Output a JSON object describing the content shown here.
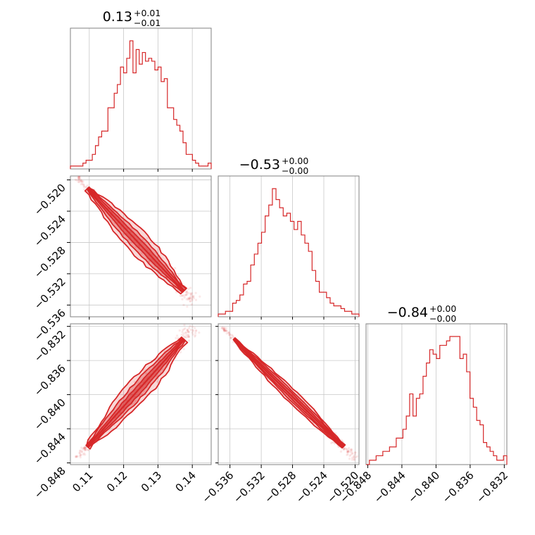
{
  "chart_data": {
    "type": "corner",
    "color": "#d62728",
    "grid": true,
    "parameters": [
      {
        "median": "0.13",
        "upper": "+0.01",
        "lower": "−0.01",
        "range": [
          0.1045,
          0.1455
        ],
        "ticks": [
          0.11,
          0.12,
          0.13,
          0.14
        ],
        "tick_labels": [
          "0.11",
          "0.12",
          "0.13",
          "0.14"
        ]
      },
      {
        "median": "−0.53",
        "upper": "+0.00",
        "lower": "−0.00",
        "range": [
          -0.5375,
          -0.5195
        ],
        "ticks": [
          -0.536,
          -0.532,
          -0.528,
          -0.524,
          -0.52
        ],
        "tick_labels": [
          "−0.536",
          "−0.532",
          "−0.528",
          "−0.524",
          "−0.520"
        ]
      },
      {
        "median": "−0.84",
        "upper": "+0.00",
        "lower": "−0.00",
        "range": [
          -0.8482,
          -0.8317
        ],
        "ticks": [
          -0.848,
          -0.844,
          -0.84,
          -0.836,
          -0.832
        ],
        "tick_labels": [
          "−0.848",
          "−0.844",
          "−0.840",
          "−0.836",
          "−0.832"
        ]
      }
    ],
    "histograms": [
      {
        "parameter": 0,
        "bin_start": 0.1045,
        "bin_end": 0.1455,
        "counts": [
          1,
          1,
          1,
          1,
          2,
          3,
          3,
          5,
          8,
          11,
          13,
          13,
          21,
          21,
          26,
          29,
          35,
          33,
          38,
          44,
          33,
          41,
          36,
          40,
          37,
          38,
          37,
          34,
          35,
          30,
          31,
          21,
          21,
          17,
          15,
          13,
          9,
          5,
          5,
          3,
          2,
          1,
          1,
          1,
          2
        ]
      },
      {
        "parameter": 1,
        "bin_start": -0.5375,
        "bin_end": -0.5195,
        "counts": [
          1,
          1,
          2,
          2,
          5,
          6,
          8,
          12,
          13,
          19,
          23,
          27,
          31,
          37,
          41,
          47,
          43,
          40,
          37,
          38,
          35,
          32,
          35,
          30,
          27,
          24,
          17,
          13,
          9,
          9,
          7,
          5,
          4,
          4,
          3,
          2,
          2,
          1,
          1
        ]
      },
      {
        "parameter": 2,
        "bin_start": -0.8482,
        "bin_end": -0.8317,
        "counts": [
          0,
          1,
          1,
          2,
          2,
          3,
          3,
          4,
          4,
          6,
          6,
          8,
          11,
          16,
          11,
          15,
          16,
          20,
          23,
          26,
          25,
          24,
          27,
          27,
          28,
          29,
          29,
          29,
          24,
          25,
          21,
          15,
          13,
          10,
          9,
          5,
          4,
          3,
          2,
          1,
          1,
          2
        ]
      }
    ],
    "pairs": [
      {
        "x_parameter": 0,
        "y_parameter": 1,
        "correlation": "negative",
        "line_start": [
          0.1095,
          -0.5211
        ],
        "line_end": [
          0.1375,
          -0.5342
        ]
      },
      {
        "x_parameter": 0,
        "y_parameter": 2,
        "correlation": "positive",
        "line_start": [
          0.1095,
          -0.8461
        ],
        "line_end": [
          0.1375,
          -0.8335
        ]
      },
      {
        "x_parameter": 1,
        "y_parameter": 2,
        "correlation": "negative",
        "line_start": [
          -0.5355,
          -0.8335
        ],
        "line_end": [
          -0.5215,
          -0.8461
        ]
      }
    ]
  }
}
